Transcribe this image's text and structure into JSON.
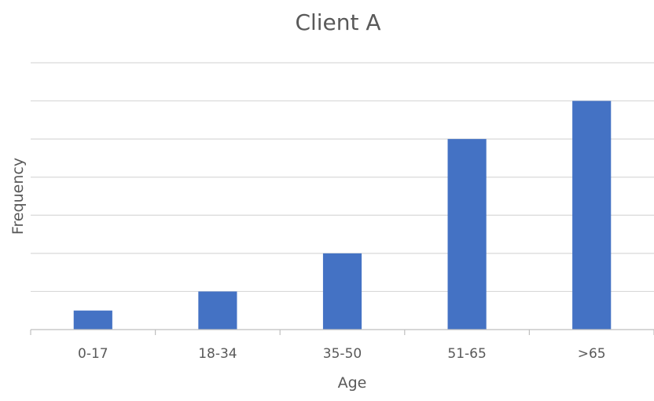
{
  "chart_data": {
    "type": "bar",
    "title": "Client A",
    "xlabel": "Age",
    "ylabel": "Frequency",
    "categories": [
      "0-17",
      "18-34",
      "35-50",
      "51-65",
      ">65"
    ],
    "values": [
      0.5,
      1,
      2,
      5,
      6
    ],
    "ylim": [
      0,
      7
    ],
    "grid": true,
    "y_tick_labels_shown": false,
    "bar_color": "#4472c4"
  }
}
